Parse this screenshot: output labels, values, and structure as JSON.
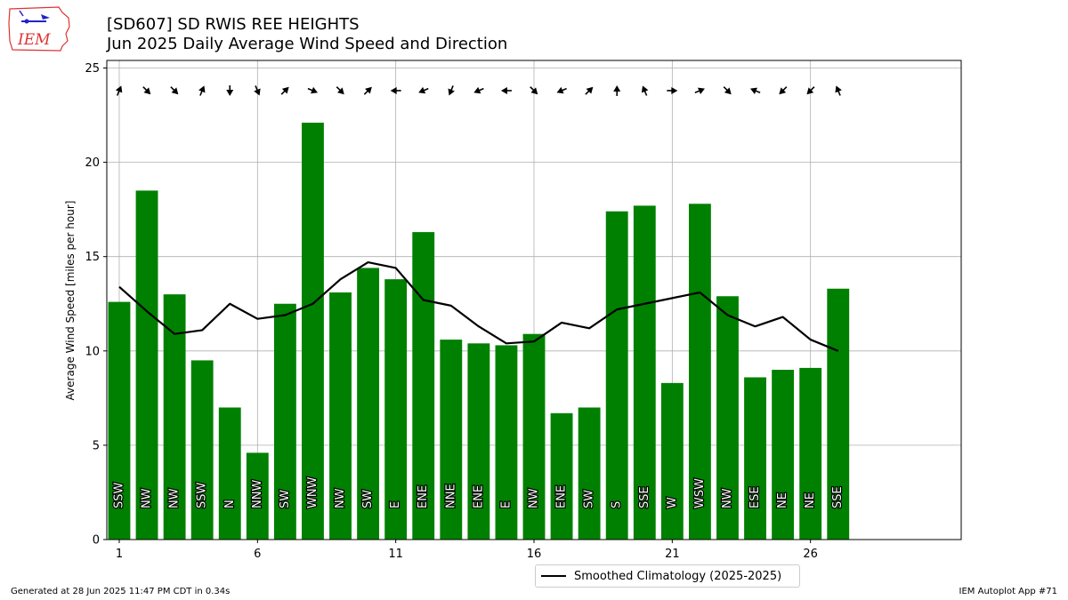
{
  "logo": {
    "text": "IEM",
    "name": "iem-logo-icon"
  },
  "header": {
    "title": "[SD607] SD RWIS REE HEIGHTS",
    "subtitle": "Jun 2025 Daily Average Wind Speed and Direction"
  },
  "footer": {
    "generated": "Generated at 28 Jun 2025 11:47 PM CDT in 0.34s",
    "app": "IEM Autoplot App #71"
  },
  "colors": {
    "bars": "#008000",
    "line": "#000000",
    "grid": "#b0b0b0"
  },
  "chart_data": {
    "type": "bar",
    "ylabel": "Average Wind Speed [miles per hour]",
    "xlabel": "",
    "ylim": [
      0,
      25.4
    ],
    "xlim": [
      0.55,
      31.45
    ],
    "xticks": [
      1,
      6,
      11,
      16,
      21,
      26
    ],
    "yticks": [
      0,
      5,
      10,
      15,
      20,
      25
    ],
    "grid": true,
    "legend_position": "bottom-center",
    "days": [
      1,
      2,
      3,
      4,
      5,
      6,
      7,
      8,
      9,
      10,
      11,
      12,
      13,
      14,
      15,
      16,
      17,
      18,
      19,
      20,
      21,
      22,
      23,
      24,
      25,
      26,
      27
    ],
    "speeds": [
      12.6,
      18.5,
      13.0,
      9.5,
      7.0,
      4.6,
      12.5,
      22.1,
      13.1,
      14.4,
      13.8,
      16.3,
      10.6,
      10.4,
      10.3,
      10.9,
      6.7,
      7.0,
      17.4,
      17.7,
      8.3,
      17.8,
      12.9,
      8.6,
      9.0,
      9.1,
      13.3
    ],
    "directions": [
      "SSW",
      "NW",
      "NW",
      "SSW",
      "N",
      "NNW",
      "SW",
      "WNW",
      "NW",
      "SW",
      "E",
      "ENE",
      "NNE",
      "ENE",
      "E",
      "NW",
      "ENE",
      "SW",
      "S",
      "SSE",
      "W",
      "WSW",
      "NW",
      "ESE",
      "NE",
      "NE",
      "SSE"
    ],
    "series": [
      {
        "name": "Smoothed Climatology (2025-2025)",
        "values": [
          13.4,
          12.1,
          10.9,
          11.1,
          12.5,
          11.7,
          11.9,
          12.5,
          13.8,
          14.7,
          14.4,
          12.7,
          12.4,
          11.3,
          10.4,
          10.5,
          11.5,
          11.2,
          12.2,
          12.5,
          12.8,
          13.1,
          11.9,
          11.3,
          11.8,
          10.6,
          10.0
        ]
      }
    ]
  }
}
